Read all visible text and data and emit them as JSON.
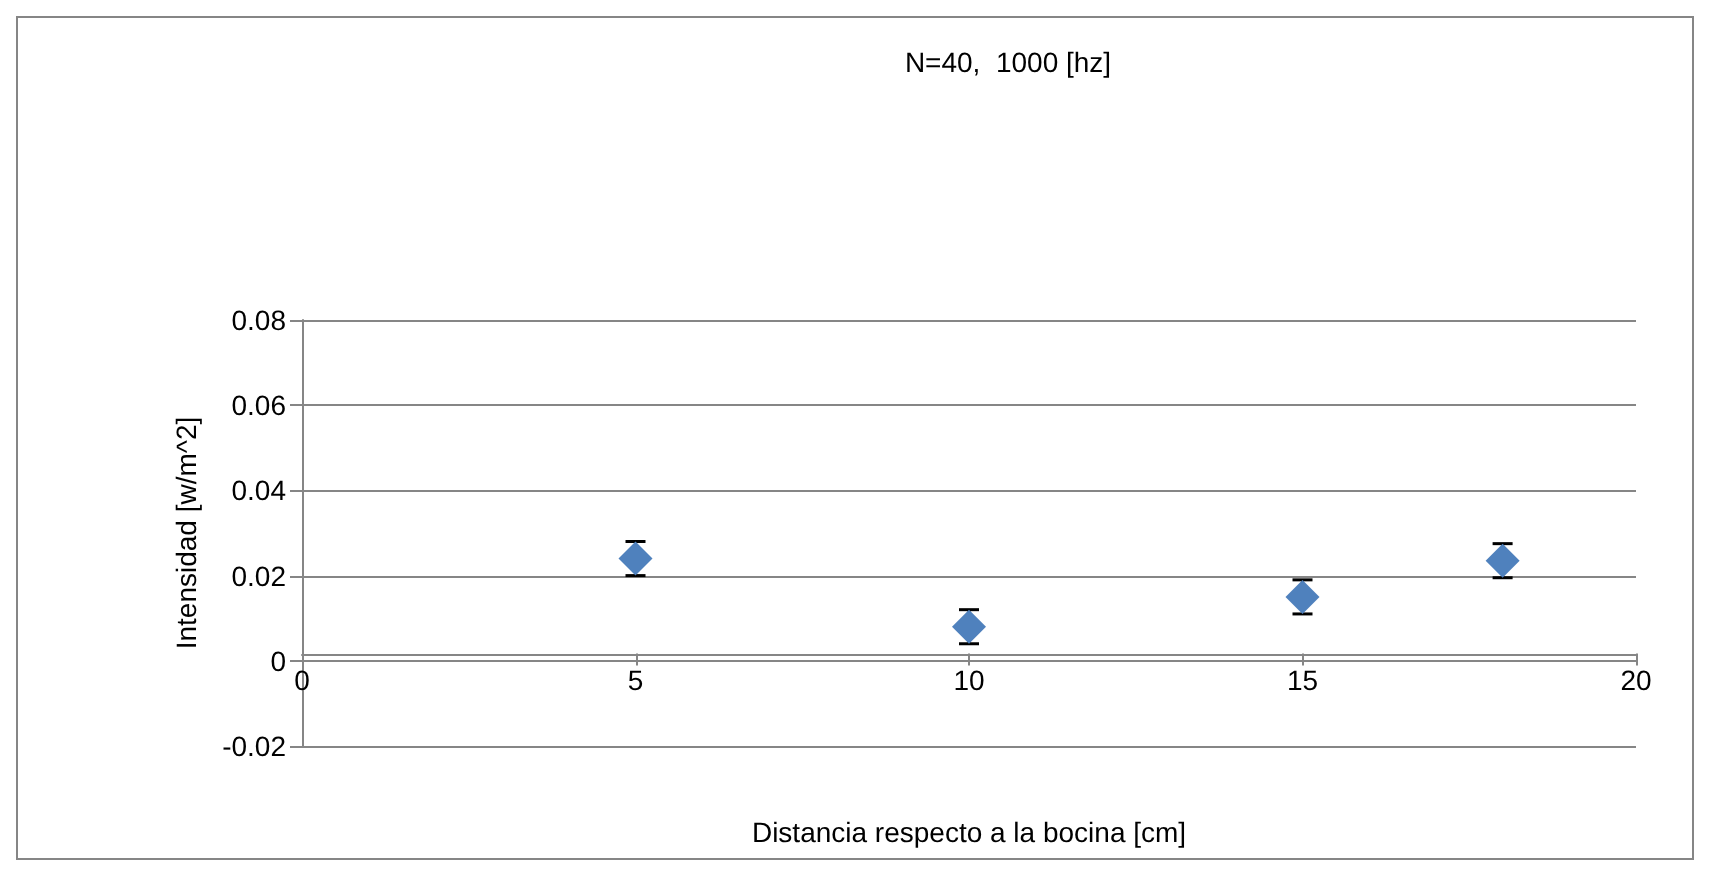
{
  "chart_data": {
    "type": "scatter",
    "title": "N=40,  1000 [hz]",
    "xlabel": "Distancia respecto a la bocina [cm]",
    "ylabel": "Intensidad [w/m^2]",
    "x": [
      5,
      10,
      15,
      18
    ],
    "series": [
      {
        "color": "#4f81bd",
        "values": [
          0.024,
          0.008,
          0.015,
          0.0235
        ],
        "errors": [
          0.004,
          0.004,
          0.004,
          0.004
        ]
      }
    ],
    "marker": "diamond",
    "xlim": [
      0,
      20
    ],
    "xticks": [
      0,
      5,
      10,
      15,
      20
    ],
    "ylim": [
      -0.02,
      0.08
    ],
    "yticks": [
      -0.02,
      0,
      0.02,
      0.04,
      0.06,
      0.08
    ],
    "grid": "y"
  }
}
